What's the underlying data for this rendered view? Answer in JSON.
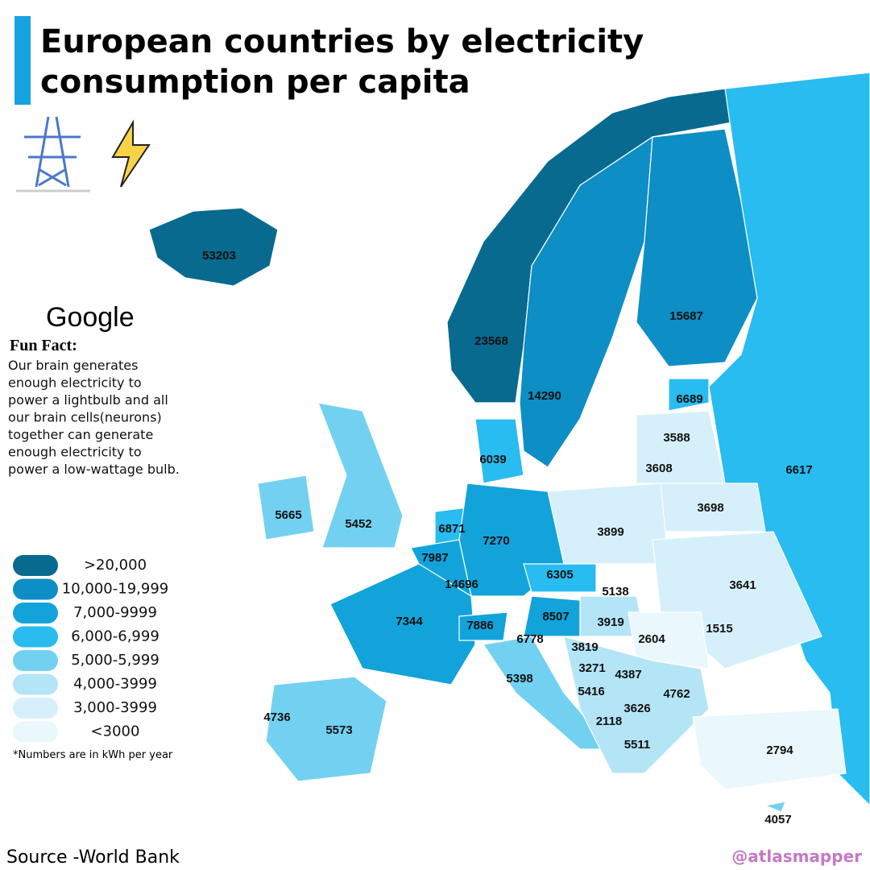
{
  "header": {
    "title_lines": [
      "European countries by electricity",
      "consumption per capita"
    ]
  },
  "google": "Google",
  "fun_fact": {
    "heading": "Fun Fact:",
    "lines": [
      "Our brain generates",
      "enough electricity to",
      "power a lightbulb and all",
      "our brain cells(neurons)",
      "together can generate",
      "enough electricity to",
      "power a low-wattage bulb."
    ]
  },
  "legend": {
    "items": [
      {
        "label": ">20,000",
        "color": "#086a8f"
      },
      {
        "label": "10,000-19,999",
        "color": "#0d8ec4"
      },
      {
        "label": "7,000-9999",
        "color": "#12a3da"
      },
      {
        "label": "6,000-6,999",
        "color": "#28bcf0"
      },
      {
        "label": "5,000-5,999",
        "color": "#72d1f1"
      },
      {
        "label": "4,000-3999",
        "color": "#b3e5f6"
      },
      {
        "label": "3,000-3999",
        "color": "#d5f0fa"
      },
      {
        "label": "<3000",
        "color": "#eaf7fc"
      }
    ],
    "note": "*Numbers are in kWh per year"
  },
  "map": {
    "labels": [
      53203,
      23568,
      14290,
      15687,
      6689,
      3588,
      6039,
      3608,
      6617,
      5665,
      5452,
      6871,
      7270,
      3899,
      3698,
      7987,
      14696,
      6305,
      5138,
      3641,
      7344,
      7886,
      8507,
      3919,
      6778,
      3819,
      2604,
      1515,
      3271,
      4387,
      5398,
      5416,
      4762,
      3626,
      2118,
      4736,
      5573,
      5511,
      2794,
      4057
    ]
  },
  "source": "Source -World Bank",
  "credit": "@atlasmapper"
}
